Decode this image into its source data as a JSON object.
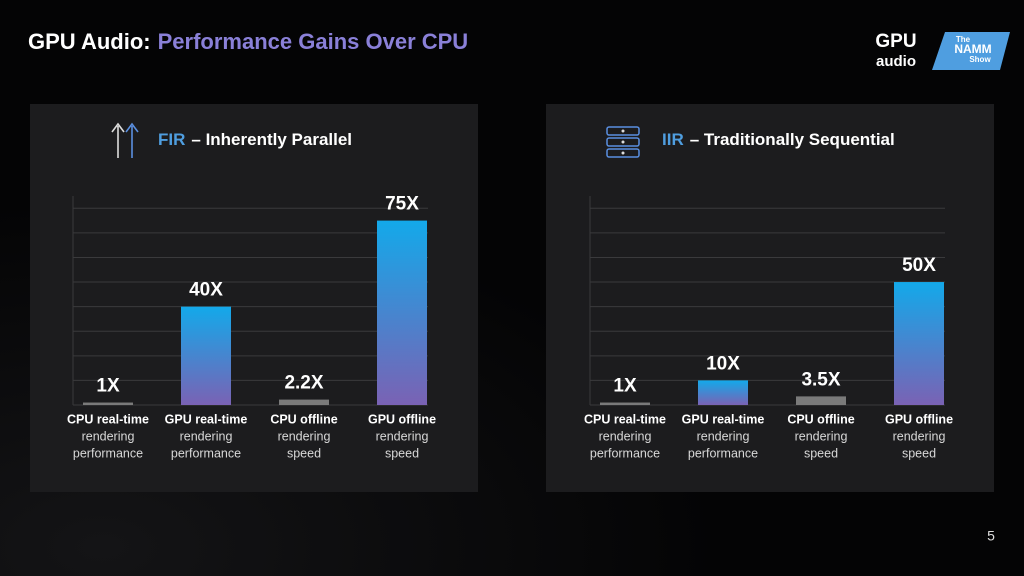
{
  "slide": {
    "title_prefix": "GPU Audio:",
    "title_main": "Performance Gains Over CPU",
    "page_number": 5,
    "logo_gpu": [
      "GPU",
      "audio"
    ],
    "logo_namm": [
      "The",
      "NAMM",
      "Show"
    ]
  },
  "chart_data": [
    {
      "type": "bar",
      "title_keyword": "FIR",
      "title": "– Inherently Parallel",
      "categories": [
        [
          "CPU real-time",
          "rendering",
          "performance"
        ],
        [
          "GPU real-time",
          "rendering",
          "performance"
        ],
        [
          "CPU offline",
          "rendering",
          "speed"
        ],
        [
          "GPU offline",
          "rendering",
          "speed"
        ]
      ],
      "values": [
        1,
        40,
        2.2,
        75
      ],
      "value_labels": [
        "1X",
        "40X",
        "2.2X",
        "75X"
      ],
      "bar_colors": [
        [
          "#7a7a7a",
          "#7a7a7a"
        ],
        [
          "#13a9ea",
          "#7a62b4"
        ],
        [
          "#7a7a7a",
          "#7a7a7a"
        ],
        [
          "#13a9ea",
          "#7a62b4"
        ]
      ],
      "ylim": [
        0,
        85
      ],
      "yticks": [
        0,
        10,
        20,
        30,
        40,
        50,
        60,
        70,
        80
      ],
      "grid": true,
      "tick_labels": false
    },
    {
      "type": "bar",
      "title_keyword": "IIR",
      "title": "– Traditionally Sequential",
      "categories": [
        [
          "CPU real-time",
          "rendering",
          "performance"
        ],
        [
          "GPU real-time",
          "rendering",
          "performance"
        ],
        [
          "CPU offline",
          "rendering",
          "speed"
        ],
        [
          "GPU offline",
          "rendering",
          "speed"
        ]
      ],
      "values": [
        1,
        10,
        3.5,
        50
      ],
      "value_labels": [
        "1X",
        "10X",
        "3.5X",
        "50X"
      ],
      "bar_colors": [
        [
          "#7a7a7a",
          "#7a7a7a"
        ],
        [
          "#13a9ea",
          "#7a62b4"
        ],
        [
          "#7a7a7a",
          "#7a7a7a"
        ],
        [
          "#13a9ea",
          "#7a62b4"
        ]
      ],
      "ylim": [
        0,
        85
      ],
      "yticks": [
        0,
        10,
        20,
        30,
        40,
        50,
        60,
        70,
        80
      ],
      "grid": true,
      "tick_labels": false
    }
  ]
}
